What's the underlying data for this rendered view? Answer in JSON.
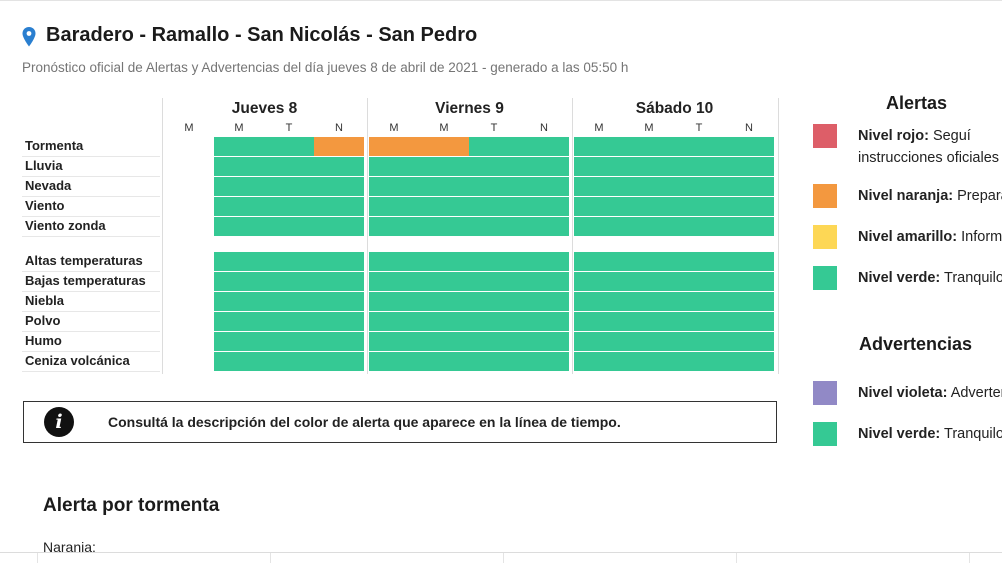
{
  "header": {
    "title": "Baradero - Ramallo - San Nicolás - San Pedro",
    "subtitle": "Pronóstico oficial de Alertas y Advertencias del día jueves 8 de abril de 2021 - generado a las 05:50 h"
  },
  "colors": {
    "verde": "#35c994",
    "naranja": "#f3983f",
    "rojo": "#dd5e68",
    "amarillo": "#fdd755",
    "violeta": "#9189c6"
  },
  "forecast": {
    "days": [
      {
        "label": "Jueves 8",
        "periods": [
          "M",
          "M",
          "T",
          "N"
        ]
      },
      {
        "label": "Viernes 9",
        "periods": [
          "M",
          "M",
          "T",
          "N"
        ]
      },
      {
        "label": "Sábado 10",
        "periods": [
          "M",
          "M",
          "T",
          "N"
        ]
      }
    ],
    "rows": [
      {
        "label": "Tormenta",
        "levels": [
          "none",
          "verde",
          "verde",
          "naranja",
          "naranja",
          "naranja",
          "verde",
          "verde",
          "verde",
          "verde",
          "verde",
          "verde"
        ]
      },
      {
        "label": "Lluvia",
        "levels": [
          "none",
          "verde",
          "verde",
          "verde",
          "verde",
          "verde",
          "verde",
          "verde",
          "verde",
          "verde",
          "verde",
          "verde"
        ]
      },
      {
        "label": "Nevada",
        "levels": [
          "none",
          "verde",
          "verde",
          "verde",
          "verde",
          "verde",
          "verde",
          "verde",
          "verde",
          "verde",
          "verde",
          "verde"
        ]
      },
      {
        "label": "Viento",
        "levels": [
          "none",
          "verde",
          "verde",
          "verde",
          "verde",
          "verde",
          "verde",
          "verde",
          "verde",
          "verde",
          "verde",
          "verde"
        ]
      },
      {
        "label": "Viento zonda",
        "levels": [
          "none",
          "verde",
          "verde",
          "verde",
          "verde",
          "verde",
          "verde",
          "verde",
          "verde",
          "verde",
          "verde",
          "verde"
        ]
      },
      {
        "label": "Altas temperaturas",
        "levels": [
          "none",
          "verde",
          "verde",
          "verde",
          "verde",
          "verde",
          "verde",
          "verde",
          "verde",
          "verde",
          "verde",
          "verde"
        ]
      },
      {
        "label": "Bajas temperaturas",
        "levels": [
          "none",
          "verde",
          "verde",
          "verde",
          "verde",
          "verde",
          "verde",
          "verde",
          "verde",
          "verde",
          "verde",
          "verde"
        ]
      },
      {
        "label": "Niebla",
        "levels": [
          "none",
          "verde",
          "verde",
          "verde",
          "verde",
          "verde",
          "verde",
          "verde",
          "verde",
          "verde",
          "verde",
          "verde"
        ]
      },
      {
        "label": "Polvo",
        "levels": [
          "none",
          "verde",
          "verde",
          "verde",
          "verde",
          "verde",
          "verde",
          "verde",
          "verde",
          "verde",
          "verde",
          "verde"
        ]
      },
      {
        "label": "Humo",
        "levels": [
          "none",
          "verde",
          "verde",
          "verde",
          "verde",
          "verde",
          "verde",
          "verde",
          "verde",
          "verde",
          "verde",
          "verde"
        ]
      },
      {
        "label": "Ceniza volcánica",
        "levels": [
          "none",
          "verde",
          "verde",
          "verde",
          "verde",
          "verde",
          "verde",
          "verde",
          "verde",
          "verde",
          "verde",
          "verde"
        ]
      }
    ]
  },
  "info": {
    "icon": "info-icon",
    "glyph": "i",
    "text": "Consultá la descripción del color de alerta que aparece en la línea de tiempo."
  },
  "section": {
    "title": "Alerta por tormenta",
    "subtitle": "Naranja:"
  },
  "legend": {
    "alertas_title": "Alertas",
    "alertas": [
      {
        "color": "rojo",
        "label": "Nivel rojo:",
        "text": "Seguí",
        "text2": "instrucciones oficiales"
      },
      {
        "color": "naranja",
        "label": "Nivel naranja:",
        "text": "Preparate"
      },
      {
        "color": "amarillo",
        "label": "Nivel amarillo:",
        "text": "Informate"
      },
      {
        "color": "verde",
        "label": "Nivel verde:",
        "text": "Tranquilo"
      }
    ],
    "advertencias_title": "Advertencias",
    "advertencias": [
      {
        "color": "violeta",
        "label": "Nivel violeta:",
        "text": "Advertencia"
      },
      {
        "color": "verde",
        "label": "Nivel verde:",
        "text": "Tranquilo"
      }
    ]
  }
}
